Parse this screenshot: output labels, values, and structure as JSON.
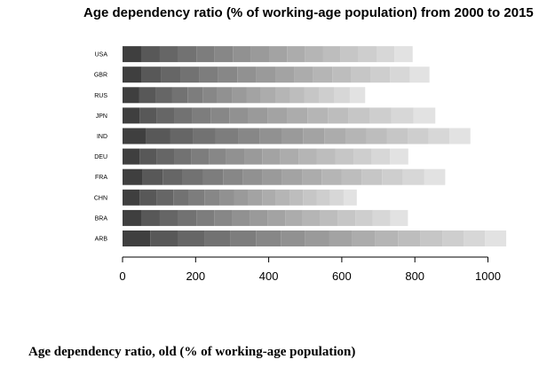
{
  "chart_data": {
    "type": "bar",
    "orientation": "horizontal",
    "stacked": true,
    "title": "Age dependency ratio (% of working-age population) from 2000 to 2015",
    "caption": "Age dependency ratio, old (% of working-age population)",
    "xlim": [
      0,
      1060
    ],
    "xticks": [
      0,
      200,
      400,
      600,
      800,
      1000
    ],
    "segment_colors": [
      "#3f3f3f",
      "#585858",
      "#666666",
      "#727272",
      "#7d7d7d",
      "#878787",
      "#919191",
      "#9a9a9a",
      "#a3a3a3",
      "#acacac",
      "#b5b5b5",
      "#bdbdbd",
      "#c6c6c6",
      "#cecece",
      "#d7d7d7",
      "#e2e2e2"
    ],
    "categories": [
      "ARB",
      "BRA",
      "CHN",
      "FRA",
      "DEU",
      "IND",
      "JPN",
      "RUS",
      "GBR",
      "USA"
    ],
    "series": [
      {
        "values": [
          76,
          51,
          47,
          55,
          47,
          65,
          47,
          46,
          53,
          51
        ]
      },
      {
        "values": [
          76,
          51,
          47,
          55,
          47,
          65,
          47,
          46,
          53,
          51
        ]
      },
      {
        "values": [
          73,
          50,
          45,
          55,
          47,
          63,
          48,
          44,
          52,
          50
        ]
      },
      {
        "values": [
          71,
          50,
          43,
          55,
          47,
          62,
          49,
          42,
          52,
          50
        ]
      },
      {
        "values": [
          69,
          49,
          42,
          55,
          48,
          61,
          50,
          41,
          52,
          50
        ]
      },
      {
        "values": [
          68,
          49,
          41,
          54,
          48,
          60,
          51,
          40,
          52,
          50
        ]
      },
      {
        "values": [
          67,
          49,
          40,
          54,
          49,
          59,
          52,
          40,
          52,
          50
        ]
      },
      {
        "values": [
          65,
          48,
          39,
          54,
          49,
          59,
          53,
          40,
          52,
          49
        ]
      },
      {
        "values": [
          64,
          48,
          38,
          54,
          50,
          58,
          54,
          39,
          52,
          49
        ]
      },
      {
        "values": [
          63,
          48,
          38,
          54,
          50,
          58,
          55,
          40,
          52,
          49
        ]
      },
      {
        "values": [
          62,
          48,
          37,
          54,
          50,
          57,
          56,
          40,
          52,
          49
        ]
      },
      {
        "values": [
          61,
          48,
          37,
          55,
          50,
          57,
          57,
          40,
          52,
          49
        ]
      },
      {
        "values": [
          60,
          48,
          37,
          56,
          50,
          57,
          58,
          41,
          53,
          49
        ]
      },
      {
        "values": [
          59,
          48,
          37,
          57,
          50,
          57,
          59,
          41,
          53,
          49
        ]
      },
      {
        "values": [
          58,
          48,
          37,
          58,
          50,
          57,
          60,
          42,
          54,
          49
        ]
      },
      {
        "values": [
          58,
          48,
          36,
          58,
          50,
          57,
          60,
          42,
          54,
          50
        ]
      }
    ]
  }
}
